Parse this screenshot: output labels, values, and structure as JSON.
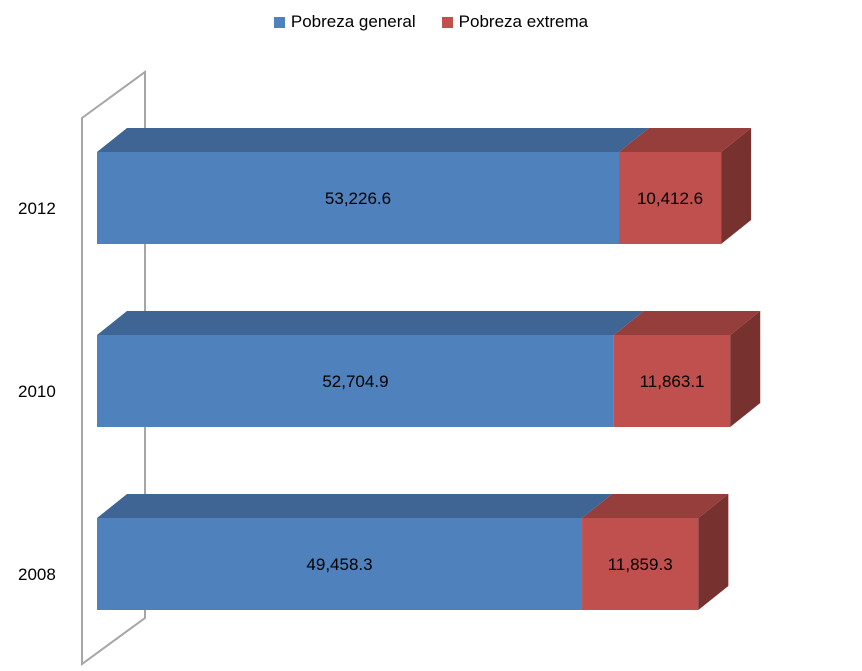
{
  "chart_data": {
    "type": "bar",
    "orientation": "horizontal",
    "stacked": true,
    "three_d": true,
    "categories": [
      "2012",
      "2010",
      "2008"
    ],
    "series": [
      {
        "name": "Pobreza general",
        "color": "#4F81BD",
        "values": [
          53226.6,
          52704.9,
          49458.3
        ],
        "labels": [
          "53,226.6",
          "52,704.9",
          "49,458.3"
        ]
      },
      {
        "name": "Pobreza extrema",
        "color": "#C0504D",
        "values": [
          10412.6,
          11863.1,
          11859.3
        ],
        "labels": [
          "10,412.6",
          "11,863.1",
          "11,859.3"
        ]
      }
    ],
    "title": "",
    "xlabel": "",
    "ylabel": "",
    "legend_position": "top-center",
    "grid": false
  }
}
